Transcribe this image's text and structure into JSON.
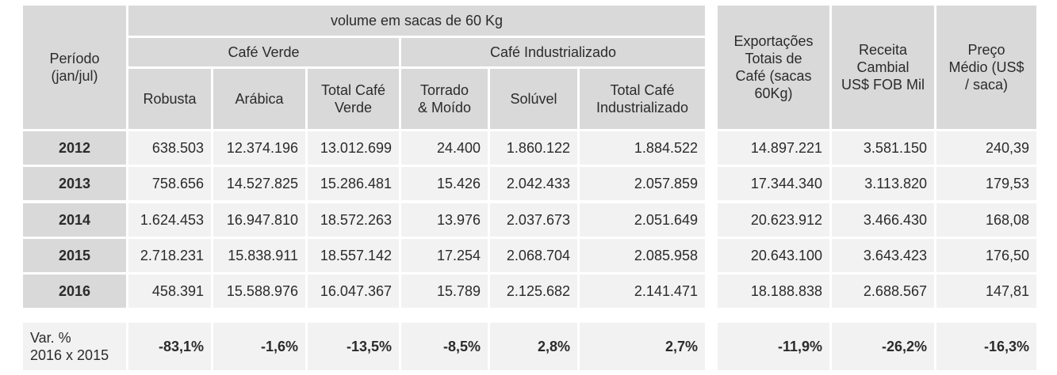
{
  "header": {
    "periodo": "Período\n(jan/jul)",
    "volume": "volume em sacas de 60 Kg",
    "cafe_verde": "Café Verde",
    "cafe_industrializado": "Café Industrializado",
    "robusta": "Robusta",
    "arabica": "Arábica",
    "total_cafe_verde": "Total Café\nVerde",
    "torrado_moido": "Torrado\n& Moído",
    "soluvel": "Solúvel",
    "total_cafe_industrializado": "Total Café\nIndustrializado",
    "exportacoes": "Exportações\nTotais de\nCafé (sacas\n60Kg)",
    "receita": "Receita\nCambial\nUS$ FOB Mil",
    "preco": "Preço\nMédio (US$\n/ saca)"
  },
  "rows": [
    {
      "year": "2012",
      "values": [
        "638.503",
        "12.374.196",
        "13.012.699",
        "24.400",
        "1.860.122",
        "1.884.522",
        "14.897.221",
        "3.581.150",
        "240,39"
      ]
    },
    {
      "year": "2013",
      "values": [
        "758.656",
        "14.527.825",
        "15.286.481",
        "15.426",
        "2.042.433",
        "2.057.859",
        "17.344.340",
        "3.113.820",
        "179,53"
      ]
    },
    {
      "year": "2014",
      "values": [
        "1.624.453",
        "16.947.810",
        "18.572.263",
        "13.976",
        "2.037.673",
        "2.051.649",
        "20.623.912",
        "3.466.430",
        "168,08"
      ]
    },
    {
      "year": "2015",
      "values": [
        "2.718.231",
        "15.838.911",
        "18.557.142",
        "17.254",
        "2.068.704",
        "2.085.958",
        "20.643.100",
        "3.643.423",
        "176,50"
      ]
    },
    {
      "year": "2016",
      "values": [
        "458.391",
        "15.588.976",
        "16.047.367",
        "15.789",
        "2.125.682",
        "2.141.471",
        "18.188.838",
        "2.688.567",
        "147,81"
      ]
    }
  ],
  "variation": {
    "label": "Var. %\n2016 x 2015",
    "values": [
      "-83,1%",
      "-1,6%",
      "-13,5%",
      "-8,5%",
      "2,8%",
      "2,7%",
      "-11,9%",
      "-26,2%",
      "-16,3%"
    ]
  }
}
